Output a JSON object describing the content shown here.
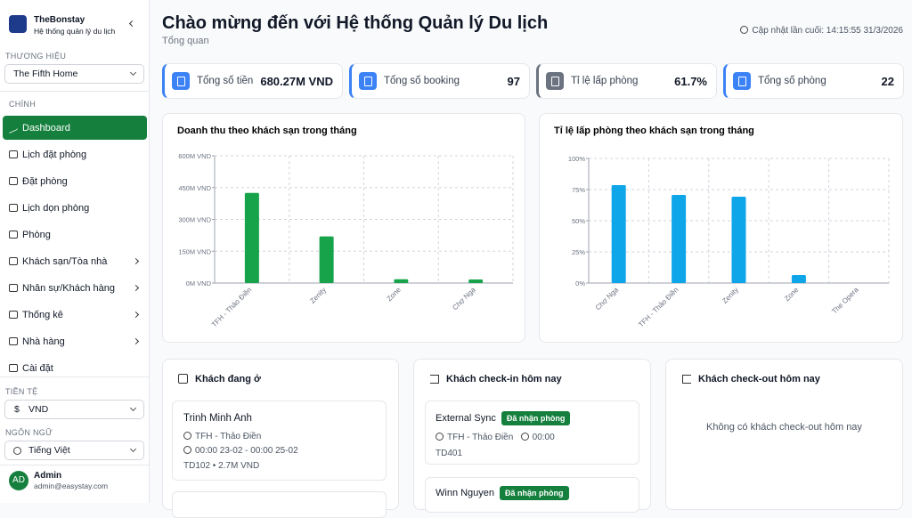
{
  "sidebar": {
    "brand_name": "TheBonstay",
    "brand_sub": "Hệ thống quản lý du lịch",
    "property_label": "THƯƠNG HIỆU",
    "property": "The Fifth Home",
    "section": "CHÍNH",
    "nav": [
      "Dashboard",
      "Lịch đặt phòng",
      "Đặt phòng",
      "Lịch dọn phòng",
      "Phòng",
      "Khách sạn/Tòa nhà",
      "Nhân sự/Khách hàng",
      "Thống kê",
      "Nhà hàng",
      "Cài đặt"
    ],
    "currency_label": "TIỀN TỆ",
    "currency": "VND",
    "language_label": "NGÔN NGỮ",
    "language": "Tiếng Việt",
    "user": {
      "initials": "AD",
      "name": "Admin",
      "email": "admin@easystay.com"
    }
  },
  "header": {
    "title": "Chào mừng đến với Hệ thống Quản lý Du lịch",
    "subtitle": "Tổng quan",
    "updated": "Cập nhật lần cuối: 14:15:55 31/3/2026"
  },
  "stats": [
    {
      "label": "Tổng số tiền",
      "value": "680.27M VND"
    },
    {
      "label": "Tổng số booking",
      "value": "97"
    },
    {
      "label": "Tỉ lệ lấp phòng",
      "value": "61.7%"
    },
    {
      "label": "Tổng số phòng",
      "value": "22"
    }
  ],
  "chart_data": [
    {
      "type": "bar",
      "title": "Doanh thu theo khách sạn trong tháng",
      "categories": [
        "TFH - Thảo Điền",
        "Zenity",
        "Zone",
        "Chợ Ngạ"
      ],
      "values": [
        425,
        220,
        18,
        17
      ],
      "color": "#16a34a",
      "ylim": [
        0,
        600
      ],
      "yticks": [
        {
          "value": 0,
          "label": "0M VND"
        },
        {
          "value": 150,
          "label": "150M VND"
        },
        {
          "value": 300,
          "label": "300M VND"
        },
        {
          "value": 450,
          "label": "450M VND"
        },
        {
          "value": 600,
          "label": "600M VND"
        }
      ],
      "grid": true
    },
    {
      "type": "bar",
      "title": "Tỉ lệ lấp phòng theo khách sạn trong tháng",
      "categories": [
        "Chợ Ngạ",
        "TFH - Thảo Điền",
        "Zenity",
        "Zone",
        "The Opera"
      ],
      "values": [
        78.6,
        70.7,
        69.3,
        6.4,
        0
      ],
      "color": "#0ea5e9",
      "ylim": [
        0,
        100
      ],
      "yticks": [
        {
          "value": 0,
          "label": "0%"
        },
        {
          "value": 25,
          "label": "25%"
        },
        {
          "value": 50,
          "label": "50%"
        },
        {
          "value": 75,
          "label": "75%"
        },
        {
          "value": 100,
          "label": "100%"
        }
      ],
      "grid": true
    }
  ],
  "staying": {
    "title": "Khách đang ở",
    "items": [
      {
        "name": "Trinh Minh Anh",
        "hotel": "TFH - Thảo Điền",
        "time": "00:00 23-02 - 00:00 25-02",
        "detail": "TD102 • 2.7M VND"
      }
    ]
  },
  "checkin": {
    "title": "Khách check-in hôm nay",
    "items": [
      {
        "name": "External Sync",
        "badge": "Đã nhận phòng",
        "hotel": "TFH - Thảo Điền",
        "time": "00:00",
        "room": "TD401"
      },
      {
        "name": "Winn Nguyen",
        "badge": "Đã nhận phòng"
      }
    ]
  },
  "checkout": {
    "title": "Khách check-out hôm nay",
    "empty": "Không có khách check-out hôm nay"
  }
}
